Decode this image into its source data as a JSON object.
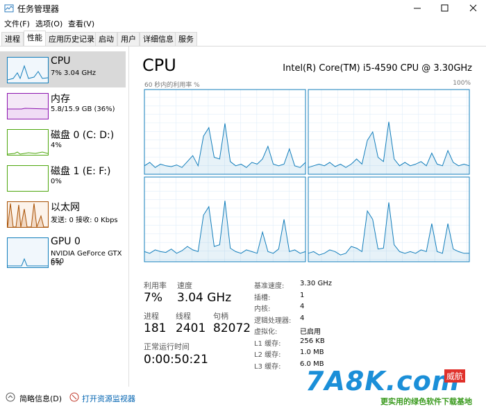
{
  "window": {
    "title": "任务管理器"
  },
  "menu": [
    "文件(F)",
    "选项(O)",
    "查看(V)"
  ],
  "tabs": [
    "进程",
    "性能",
    "应用历史记录",
    "启动",
    "用户",
    "详细信息",
    "服务"
  ],
  "sidebar": [
    {
      "name": "CPU",
      "detail": "7% 3.04 GHz"
    },
    {
      "name": "内存",
      "detail": "5.8/15.9 GB (36%)"
    },
    {
      "name": "磁盘 0 (C: D:)",
      "detail": "4%"
    },
    {
      "name": "磁盘 1 (E: F:)",
      "detail": "0%"
    },
    {
      "name": "以太网",
      "detail": "发送: 0 接收: 0 Kbps"
    },
    {
      "name": "GPU 0",
      "detail": "NVIDIA GeForce GTX 650",
      "detail2": "0%"
    }
  ],
  "main": {
    "title": "CPU",
    "model": "Intel(R) Core(TM) i5-4590 CPU @ 3.30GHz",
    "graph_label": "60 秒内的利用率 %",
    "graph_max": "100%",
    "graph": {
      "ylim": [
        0,
        100
      ],
      "cores": [
        {
          "values": [
            10,
            14,
            8,
            12,
            10,
            9,
            11,
            8,
            15,
            22,
            10,
            45,
            55,
            20,
            18,
            60,
            15,
            10,
            12,
            8,
            14,
            12,
            18,
            33,
            12,
            10,
            12,
            30,
            10,
            8,
            14
          ]
        },
        {
          "values": [
            8,
            10,
            12,
            10,
            14,
            9,
            12,
            8,
            12,
            18,
            12,
            40,
            50,
            20,
            15,
            62,
            18,
            10,
            14,
            10,
            12,
            15,
            10,
            25,
            12,
            10,
            28,
            14,
            10,
            12,
            10
          ]
        },
        {
          "values": [
            12,
            10,
            14,
            12,
            11,
            15,
            10,
            13,
            18,
            14,
            12,
            55,
            65,
            18,
            20,
            72,
            16,
            12,
            10,
            14,
            12,
            10,
            35,
            12,
            10,
            15,
            50,
            12,
            14,
            10,
            12
          ]
        },
        {
          "values": [
            10,
            12,
            8,
            10,
            14,
            12,
            8,
            10,
            18,
            16,
            12,
            60,
            50,
            15,
            16,
            70,
            20,
            12,
            10,
            12,
            10,
            14,
            12,
            45,
            12,
            10,
            45,
            15,
            12,
            10,
            10
          ]
        }
      ]
    },
    "stats": [
      {
        "label": "利用率",
        "value": "7%"
      },
      {
        "label": "速度",
        "value": "3.04 GHz"
      },
      {
        "label": "进程",
        "value": "181"
      },
      {
        "label": "线程",
        "value": "2401"
      },
      {
        "label": "句柄",
        "value": "82072"
      },
      {
        "label": "正常运行时间",
        "value": "0:00:50:21"
      }
    ],
    "specs": [
      {
        "label": "基准速度:",
        "value": "3.30 GHz"
      },
      {
        "label": "插槽:",
        "value": "1"
      },
      {
        "label": "内核:",
        "value": "4"
      },
      {
        "label": "逻辑处理器:",
        "value": "4"
      },
      {
        "label": "虚拟化:",
        "value": "已启用"
      },
      {
        "label": "L1 缓存:",
        "value": "256 KB"
      },
      {
        "label": "L2 缓存:",
        "value": "1.0 MB"
      },
      {
        "label": "L3 缓存:",
        "value": "6.0 MB"
      }
    ]
  },
  "footer": {
    "fewer_details": "简略信息(D)",
    "resource_monitor": "打开资源监视器"
  },
  "watermark": {
    "logo": "7A8K.com",
    "badge": "威航",
    "slogan": "更实用的绿色软件下载基地"
  }
}
